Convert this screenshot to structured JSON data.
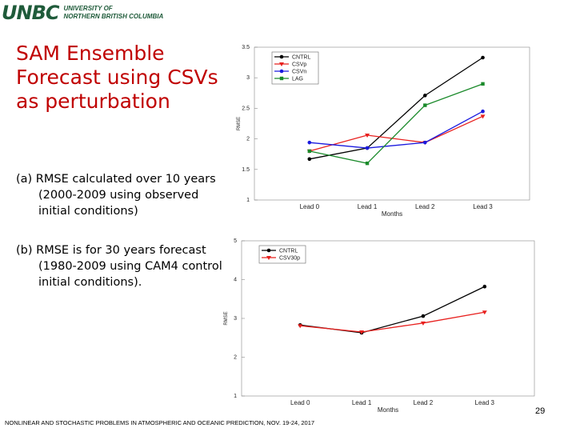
{
  "header": {
    "logo": "UNBC",
    "line1": "UNIVERSITY OF",
    "line2": "NORTHERN BRITISH COLUMBIA"
  },
  "slide": {
    "title": [
      "SAM Ensemble",
      "Forecast using CSVs",
      "as perturbation"
    ],
    "items": [
      [
        "(a)  RMSE calculated over 10 years",
        "(2000-2009 using observed",
        "initial conditions)"
      ],
      [
        "(b)  RMSE is for 30 years forecast",
        "(1980-2009 using CAM4 control",
        "initial conditions)."
      ]
    ]
  },
  "footer": "NONLINEAR AND STOCHASTIC PROBLEMS IN ATMOSPHERIC AND OCEANIC PREDICTION, NOV. 19-24, 2017",
  "page_number": "29",
  "chart_data": [
    {
      "type": "line",
      "xlabel": "Months",
      "ylabel": "RMSE",
      "legend": "upper left",
      "categories": [
        "Lead 0",
        "Lead 1",
        "Lead 2",
        "Lead 3"
      ],
      "ylim": [
        1,
        3.5
      ],
      "yticks": [
        1,
        1.5,
        2,
        2.5,
        3,
        3.5
      ],
      "series": [
        {
          "name": "CNTRL",
          "color": "#000000",
          "marker": "o",
          "values": [
            1.67,
            1.85,
            2.71,
            3.33
          ]
        },
        {
          "name": "CSVp",
          "color": "#e8201e",
          "marker": "v",
          "values": [
            1.8,
            2.06,
            1.94,
            2.37
          ]
        },
        {
          "name": "CSVn",
          "color": "#1a1adf",
          "marker": "o",
          "values": [
            1.94,
            1.85,
            1.94,
            2.45
          ]
        },
        {
          "name": "LAG",
          "color": "#1a8a2a",
          "marker": "s",
          "values": [
            1.8,
            1.6,
            2.55,
            2.9
          ]
        }
      ]
    },
    {
      "type": "line",
      "xlabel": "Months",
      "ylabel": "RMSE",
      "legend": "upper left",
      "categories": [
        "Lead 0",
        "Lead 1",
        "Lead 2",
        "Lead 3"
      ],
      "ylim": [
        1,
        5
      ],
      "yticks": [
        1,
        2,
        3,
        4,
        5
      ],
      "series": [
        {
          "name": "CNTRL",
          "color": "#000000",
          "marker": "o",
          "values": [
            2.83,
            2.63,
            3.06,
            3.82
          ]
        },
        {
          "name": "CSV30p",
          "color": "#e8201e",
          "marker": "v",
          "values": [
            2.81,
            2.65,
            2.88,
            3.16
          ]
        }
      ]
    }
  ]
}
